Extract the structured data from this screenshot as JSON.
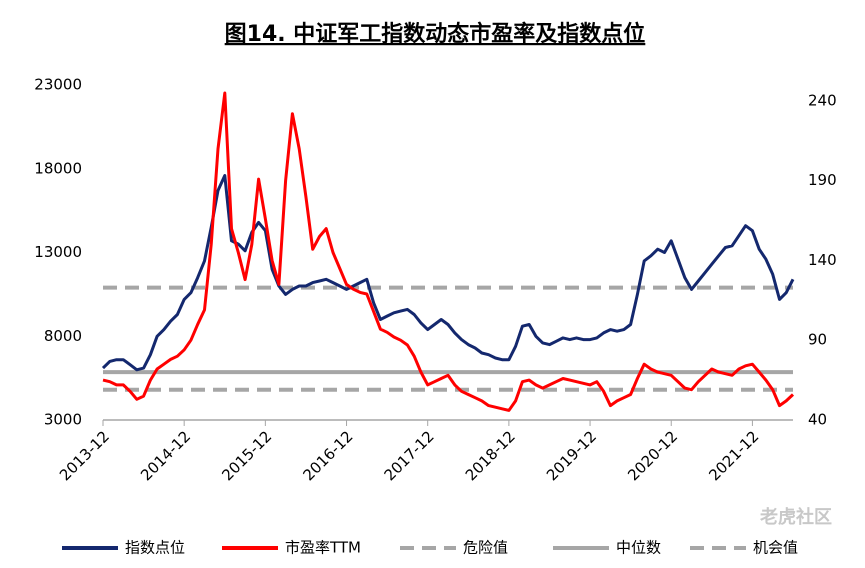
{
  "chart_data": {
    "type": "line",
    "title": "图14. 中证军工指数动态市盈率及指数点位",
    "watermark": "老虎社区",
    "categories": [
      "2013-12",
      "2014-01",
      "2014-02",
      "2014-03",
      "2014-04",
      "2014-05",
      "2014-06",
      "2014-07",
      "2014-08",
      "2014-09",
      "2014-10",
      "2014-11",
      "2014-12",
      "2015-01",
      "2015-02",
      "2015-03",
      "2015-04",
      "2015-05",
      "2015-06",
      "2015-07",
      "2015-08",
      "2015-09",
      "2015-10",
      "2015-11",
      "2015-12",
      "2016-01",
      "2016-02",
      "2016-03",
      "2016-04",
      "2016-05",
      "2016-06",
      "2016-07",
      "2016-08",
      "2016-09",
      "2016-10",
      "2016-11",
      "2016-12",
      "2017-01",
      "2017-02",
      "2017-03",
      "2017-04",
      "2017-05",
      "2017-06",
      "2017-07",
      "2017-08",
      "2017-09",
      "2017-10",
      "2017-11",
      "2017-12",
      "2018-01",
      "2018-02",
      "2018-03",
      "2018-04",
      "2018-05",
      "2018-06",
      "2018-07",
      "2018-08",
      "2018-09",
      "2018-10",
      "2018-11",
      "2018-12",
      "2019-01",
      "2019-02",
      "2019-03",
      "2019-04",
      "2019-05",
      "2019-06",
      "2019-07",
      "2019-08",
      "2019-09",
      "2019-10",
      "2019-11",
      "2019-12",
      "2020-01",
      "2020-02",
      "2020-03",
      "2020-04",
      "2020-05",
      "2020-06",
      "2020-07",
      "2020-08",
      "2020-09",
      "2020-10",
      "2020-11",
      "2020-12",
      "2021-01",
      "2021-02",
      "2021-03",
      "2021-04",
      "2021-05",
      "2021-06",
      "2021-07",
      "2021-08",
      "2021-09",
      "2021-10",
      "2021-11",
      "2021-12",
      "2022-01",
      "2022-02",
      "2022-03",
      "2022-04",
      "2022-05",
      "2022-06"
    ],
    "xticks": [
      "2013-12",
      "2014-12",
      "2015-12",
      "2016-12",
      "2017-12",
      "2018-12",
      "2019-12",
      "2020-12",
      "2021-12"
    ],
    "series": [
      {
        "name": "指数点位",
        "color": "#14286e",
        "axis": "y",
        "values": [
          6100,
          6500,
          6600,
          6600,
          6300,
          6000,
          6100,
          6900,
          8000,
          8400,
          8900,
          9300,
          10200,
          10600,
          11500,
          12500,
          14500,
          16700,
          17600,
          13700,
          13500,
          13100,
          14200,
          14800,
          14300,
          12000,
          11000,
          10500,
          10800,
          11000,
          11000,
          11200,
          11300,
          11400,
          11200,
          11000,
          10800,
          11000,
          11200,
          11400,
          10000,
          9000,
          9200,
          9400,
          9500,
          9600,
          9300,
          8800,
          8400,
          8700,
          9000,
          8700,
          8200,
          7800,
          7500,
          7300,
          7000,
          6900,
          6700,
          6600,
          6600,
          7400,
          8600,
          8700,
          8000,
          7600,
          7500,
          7700,
          7900,
          7800,
          7900,
          7800,
          7800,
          7900,
          8200,
          8400,
          8300,
          8400,
          8700,
          10500,
          12500,
          12800,
          13200,
          13000,
          13700,
          12600,
          11500,
          10800,
          11300,
          11800,
          12300,
          12800,
          13300,
          13400,
          14000,
          14600,
          14300,
          13200,
          12600,
          11700,
          10200,
          10600,
          11400
        ]
      },
      {
        "name": "市盈率TTM",
        "color": "#ff0000",
        "axis": "y2",
        "values": [
          65,
          64,
          62,
          62,
          58,
          53,
          55,
          65,
          72,
          75,
          78,
          80,
          84,
          90,
          100,
          109,
          150,
          210,
          245,
          160,
          145,
          128,
          150,
          191,
          166,
          140,
          125,
          190,
          232,
          210,
          180,
          147,
          155,
          160,
          145,
          135,
          125,
          122,
          120,
          119,
          108,
          97,
          95,
          92,
          90,
          87,
          80,
          70,
          62,
          64,
          66,
          68,
          62,
          58,
          56,
          54,
          52,
          49,
          48,
          47,
          46,
          52,
          64,
          65,
          62,
          60,
          62,
          64,
          66,
          65,
          64,
          63,
          62,
          64,
          58,
          49,
          52,
          54,
          56,
          66,
          75,
          72,
          70,
          69,
          68,
          64,
          60,
          59,
          64,
          68,
          72,
          70,
          69,
          68,
          72,
          74,
          75,
          70,
          65,
          59,
          49,
          52,
          56
        ]
      }
    ],
    "reference_lines": [
      {
        "name": "危险值",
        "value": 123,
        "axis": "y2",
        "color": "#a6a6a6",
        "style": "dashed"
      },
      {
        "name": "中位数",
        "value": 70,
        "axis": "y2",
        "color": "#a6a6a6",
        "style": "solid"
      },
      {
        "name": "机会值",
        "value": 59,
        "axis": "y2",
        "color": "#a6a6a6",
        "style": "dashed"
      }
    ],
    "ylim": [
      3000,
      23000
    ],
    "yticks": [
      3000,
      8000,
      13000,
      18000,
      23000
    ],
    "y2lim": [
      40,
      250
    ],
    "y2ticks": [
      40,
      90,
      140,
      190,
      240
    ],
    "grid": false,
    "legend": "bottom"
  }
}
